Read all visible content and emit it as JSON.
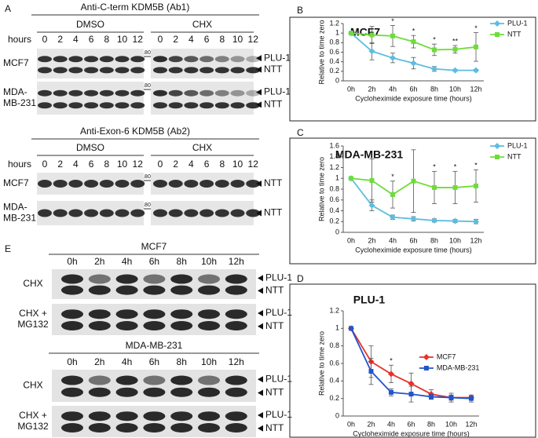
{
  "panel_labels": {
    "a": "A",
    "b": "B",
    "c": "C",
    "d": "D",
    "e": "E"
  },
  "blot_ab1": {
    "title": "Anti-C-term KDM5B (Ab1)",
    "treatments": [
      "DMSO",
      "CHX"
    ],
    "hours_label": "hours",
    "hours": [
      "0",
      "2",
      "4",
      "6",
      "8",
      "10",
      "12"
    ],
    "rows": [
      {
        "cell_line": [
          "MCF7"
        ],
        "marker": "180",
        "bands": [
          "PLU-1",
          "NTT"
        ]
      },
      {
        "cell_line": [
          "MDA-",
          "MB-231"
        ],
        "marker": "180",
        "bands": [
          "PLU-1",
          "NTT"
        ]
      }
    ]
  },
  "blot_ab2": {
    "title": "Anti-Exon-6 KDM5B (Ab2)",
    "treatments": [
      "DMSO",
      "CHX"
    ],
    "hours_label": "hours",
    "hours": [
      "0",
      "2",
      "4",
      "6",
      "8",
      "10",
      "12"
    ],
    "rows": [
      {
        "cell_line": [
          "MCF7"
        ],
        "marker": "180",
        "bands": [
          "NTT"
        ]
      },
      {
        "cell_line": [
          "MDA-",
          "MB-231"
        ],
        "marker": "180",
        "bands": [
          "NTT"
        ]
      }
    ]
  },
  "blot_e": [
    {
      "title": "MCF7",
      "hours": [
        "0h",
        "2h",
        "4h",
        "6h",
        "8h",
        "10h",
        "12h"
      ],
      "rows": [
        {
          "treatment": [
            "CHX"
          ],
          "bands": [
            "PLU-1",
            "NTT"
          ]
        },
        {
          "treatment": [
            "CHX +",
            "MG132"
          ],
          "bands": [
            "PLU-1",
            "NTT"
          ]
        }
      ]
    },
    {
      "title": "MDA-MB-231",
      "hours": [
        "0h",
        "2h",
        "4h",
        "6h",
        "8h",
        "10h",
        "12h"
      ],
      "rows": [
        {
          "treatment": [
            "CHX"
          ],
          "bands": [
            "PLU-1",
            "NTT"
          ]
        },
        {
          "treatment": [
            "CHX +",
            "MG132"
          ],
          "bands": [
            "PLU-1",
            "NTT"
          ]
        }
      ]
    }
  ],
  "chart_data": [
    {
      "type": "line",
      "title": "MCF7",
      "x_label": "Cycloheximide exposure time (hours)",
      "y_label": "Relative to time zero",
      "categories": [
        "0h",
        "2h",
        "4h",
        "6h",
        "8h",
        "10h",
        "12h"
      ],
      "ylim": [
        0,
        1.2
      ],
      "yticks": [
        0,
        0.2,
        0.4,
        0.6,
        0.8,
        1,
        1.2
      ],
      "legend": "top-right",
      "series": [
        {
          "name": "PLU-1",
          "color": "#5bbde0",
          "marker": "diamond",
          "values": [
            1,
            0.62,
            0.48,
            0.37,
            0.25,
            0.22,
            0.22
          ],
          "errors": [
            0,
            0.18,
            0.1,
            0.12,
            0.05,
            0.02,
            0.02
          ]
        },
        {
          "name": "NTT",
          "color": "#6edc3a",
          "marker": "square",
          "values": [
            1,
            0.96,
            0.94,
            0.82,
            0.65,
            0.66,
            0.71
          ],
          "errors": [
            0,
            0.18,
            0.22,
            0.13,
            0.12,
            0.08,
            0.3
          ]
        }
      ],
      "significance": [
        null,
        null,
        "*",
        "*",
        "*",
        "**",
        "*"
      ]
    },
    {
      "type": "line",
      "title": "MDA-MB-231",
      "x_label": "Cycloheximide exposure time (hours)",
      "y_label": "Relative to time zero",
      "categories": [
        "0h",
        "2h",
        "4h",
        "6h",
        "8h",
        "10h",
        "12h"
      ],
      "ylim": [
        0,
        1.6
      ],
      "yticks": [
        0,
        0.2,
        0.4,
        0.6,
        0.8,
        1,
        1.2,
        1.4,
        1.6
      ],
      "legend": "top-right",
      "series": [
        {
          "name": "PLU-1",
          "color": "#5bbde0",
          "marker": "diamond",
          "values": [
            1,
            0.5,
            0.28,
            0.25,
            0.22,
            0.21,
            0.2
          ],
          "errors": [
            0,
            0.1,
            0.04,
            0.04,
            0.03,
            0.03,
            0.04
          ]
        },
        {
          "name": "NTT",
          "color": "#6edc3a",
          "marker": "square",
          "values": [
            1,
            0.96,
            0.7,
            0.95,
            0.83,
            0.83,
            0.86
          ],
          "errors": [
            0,
            0.4,
            0.25,
            0.58,
            0.3,
            0.3,
            0.3
          ]
        }
      ],
      "significance": [
        null,
        null,
        "*",
        null,
        "*",
        "*",
        "*"
      ]
    },
    {
      "type": "line",
      "title": "PLU-1",
      "x_label": "Cycloheximide exposure time (hours)",
      "y_label": "Relative to time zero",
      "categories": [
        "0h",
        "2h",
        "4h",
        "6h",
        "8h",
        "10h",
        "12h"
      ],
      "ylim": [
        0,
        1.2
      ],
      "yticks": [
        0,
        0.2,
        0.4,
        0.6,
        0.8,
        1,
        1.2
      ],
      "legend": "right",
      "series": [
        {
          "name": "MCF7",
          "color": "#e8312a",
          "marker": "diamond",
          "values": [
            1,
            0.62,
            0.48,
            0.37,
            0.25,
            0.21,
            0.21
          ],
          "errors": [
            0,
            0.18,
            0.1,
            0.12,
            0.05,
            0.03,
            0.02
          ]
        },
        {
          "name": "MDA-MB-231",
          "color": "#2255cc",
          "marker": "square",
          "values": [
            1,
            0.51,
            0.27,
            0.25,
            0.22,
            0.21,
            0.2
          ],
          "errors": [
            0,
            0.15,
            0.04,
            0.09,
            0.03,
            0.05,
            0.04
          ]
        }
      ],
      "significance": [
        null,
        null,
        "*",
        null,
        null,
        null,
        null
      ]
    }
  ]
}
